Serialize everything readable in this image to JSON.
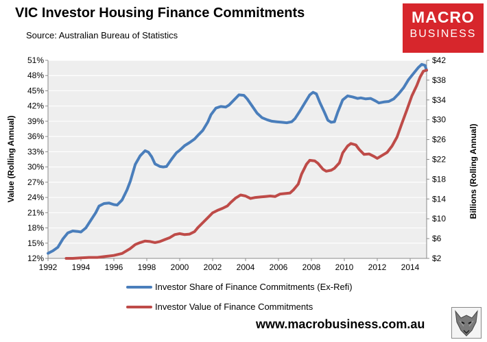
{
  "header": {
    "title": "VIC Investor Housing Finance Commitments",
    "subtitle": "Source: Australian Bureau of Statistics"
  },
  "logo": {
    "line1": "MACRO",
    "line2": "BUSINESS"
  },
  "footer": {
    "url": "www.macrobusiness.com.au",
    "emblem_icon": "wolf-emblem-icon"
  },
  "colors": {
    "share": "#4a7ebb",
    "value": "#be4b48",
    "plot_bg": "#eeeeee"
  },
  "chart_data": {
    "type": "line",
    "title": "VIC Investor Housing Finance Commitments",
    "xlabel": "",
    "ylabel_left": "Value (Rolling Annual)",
    "ylabel_right": "Billions (Rolling Annual)",
    "xlim": [
      1992,
      2015
    ],
    "ylim_left": [
      12,
      51
    ],
    "ylim_right": [
      2,
      42
    ],
    "x_ticks": [
      "1992",
      "1994",
      "1996",
      "1998",
      "2000",
      "2002",
      "2004",
      "2006",
      "2008",
      "2010",
      "2012",
      "2014"
    ],
    "y_ticks_left": [
      "12%",
      "15%",
      "18%",
      "21%",
      "24%",
      "27%",
      "30%",
      "33%",
      "36%",
      "39%",
      "42%",
      "45%",
      "48%",
      "51%"
    ],
    "y_ticks_right": [
      "$2",
      "$6",
      "$10",
      "$14",
      "$18",
      "$22",
      "$26",
      "$30",
      "$34",
      "$38",
      "$42"
    ],
    "grid": "horizontal",
    "legend_position": "bottom",
    "series": [
      {
        "name": "Investor Share of Finance Commitments (Ex-Refi)",
        "axis": "left",
        "unit": "%",
        "points": [
          [
            1992.0,
            13.0
          ],
          [
            1992.3,
            13.5
          ],
          [
            1992.6,
            14.2
          ],
          [
            1992.9,
            15.8
          ],
          [
            1993.2,
            17.0
          ],
          [
            1993.5,
            17.4
          ],
          [
            1993.8,
            17.3
          ],
          [
            1994.0,
            17.2
          ],
          [
            1994.3,
            18.0
          ],
          [
            1994.6,
            19.5
          ],
          [
            1994.9,
            21.0
          ],
          [
            1995.1,
            22.3
          ],
          [
            1995.4,
            22.8
          ],
          [
            1995.7,
            22.9
          ],
          [
            1996.0,
            22.6
          ],
          [
            1996.2,
            22.5
          ],
          [
            1996.5,
            23.5
          ],
          [
            1996.8,
            25.5
          ],
          [
            1997.0,
            27.2
          ],
          [
            1997.3,
            30.5
          ],
          [
            1997.6,
            32.2
          ],
          [
            1997.9,
            33.2
          ],
          [
            1998.1,
            32.9
          ],
          [
            1998.3,
            32.0
          ],
          [
            1998.5,
            30.6
          ],
          [
            1998.8,
            30.1
          ],
          [
            1999.0,
            30.0
          ],
          [
            1999.2,
            30.1
          ],
          [
            1999.5,
            31.5
          ],
          [
            1999.8,
            32.8
          ],
          [
            2000.0,
            33.3
          ],
          [
            2000.3,
            34.2
          ],
          [
            2000.6,
            34.8
          ],
          [
            2000.9,
            35.5
          ],
          [
            2001.1,
            36.2
          ],
          [
            2001.4,
            37.2
          ],
          [
            2001.7,
            38.8
          ],
          [
            2001.9,
            40.3
          ],
          [
            2002.2,
            41.6
          ],
          [
            2002.5,
            41.9
          ],
          [
            2002.8,
            41.8
          ],
          [
            2003.0,
            42.2
          ],
          [
            2003.3,
            43.2
          ],
          [
            2003.6,
            44.2
          ],
          [
            2003.9,
            44.1
          ],
          [
            2004.1,
            43.4
          ],
          [
            2004.4,
            42.0
          ],
          [
            2004.7,
            40.6
          ],
          [
            2005.0,
            39.7
          ],
          [
            2005.3,
            39.3
          ],
          [
            2005.6,
            39.0
          ],
          [
            2005.9,
            38.9
          ],
          [
            2006.2,
            38.8
          ],
          [
            2006.5,
            38.7
          ],
          [
            2006.8,
            38.9
          ],
          [
            2007.0,
            39.5
          ],
          [
            2007.3,
            41.0
          ],
          [
            2007.6,
            42.6
          ],
          [
            2007.9,
            44.2
          ],
          [
            2008.1,
            44.7
          ],
          [
            2008.3,
            44.4
          ],
          [
            2008.5,
            42.8
          ],
          [
            2008.8,
            40.7
          ],
          [
            2009.0,
            39.2
          ],
          [
            2009.2,
            38.8
          ],
          [
            2009.4,
            38.9
          ],
          [
            2009.6,
            40.8
          ],
          [
            2009.9,
            43.2
          ],
          [
            2010.2,
            44.0
          ],
          [
            2010.5,
            43.8
          ],
          [
            2010.8,
            43.5
          ],
          [
            2011.0,
            43.6
          ],
          [
            2011.3,
            43.4
          ],
          [
            2011.6,
            43.5
          ],
          [
            2011.9,
            43.0
          ],
          [
            2012.1,
            42.6
          ],
          [
            2012.4,
            42.8
          ],
          [
            2012.7,
            42.9
          ],
          [
            2013.0,
            43.4
          ],
          [
            2013.3,
            44.4
          ],
          [
            2013.6,
            45.6
          ],
          [
            2013.9,
            47.2
          ],
          [
            2014.2,
            48.4
          ],
          [
            2014.5,
            49.6
          ],
          [
            2014.7,
            50.2
          ],
          [
            2014.9,
            50.0
          ],
          [
            2015.0,
            49.0
          ]
        ]
      },
      {
        "name": "Investor Value of Finance Commitments",
        "axis": "right",
        "unit": "$B",
        "points": [
          [
            1993.1,
            2.0
          ],
          [
            1993.5,
            2.0
          ],
          [
            1994.0,
            2.1
          ],
          [
            1994.5,
            2.2
          ],
          [
            1995.0,
            2.2
          ],
          [
            1995.5,
            2.4
          ],
          [
            1996.0,
            2.6
          ],
          [
            1996.5,
            3.0
          ],
          [
            1997.0,
            4.0
          ],
          [
            1997.3,
            4.8
          ],
          [
            1997.6,
            5.2
          ],
          [
            1997.9,
            5.5
          ],
          [
            1998.2,
            5.4
          ],
          [
            1998.5,
            5.2
          ],
          [
            1998.8,
            5.4
          ],
          [
            1999.1,
            5.8
          ],
          [
            1999.4,
            6.2
          ],
          [
            1999.7,
            6.8
          ],
          [
            2000.0,
            7.0
          ],
          [
            2000.3,
            6.8
          ],
          [
            2000.6,
            6.9
          ],
          [
            2000.9,
            7.4
          ],
          [
            2001.1,
            8.2
          ],
          [
            2001.4,
            9.2
          ],
          [
            2001.7,
            10.2
          ],
          [
            2002.0,
            11.2
          ],
          [
            2002.3,
            11.7
          ],
          [
            2002.6,
            12.1
          ],
          [
            2002.9,
            12.6
          ],
          [
            2003.1,
            13.3
          ],
          [
            2003.4,
            14.2
          ],
          [
            2003.7,
            14.8
          ],
          [
            2004.0,
            14.6
          ],
          [
            2004.3,
            14.1
          ],
          [
            2004.6,
            14.3
          ],
          [
            2004.9,
            14.4
          ],
          [
            2005.2,
            14.5
          ],
          [
            2005.5,
            14.6
          ],
          [
            2005.8,
            14.5
          ],
          [
            2006.1,
            15.0
          ],
          [
            2006.4,
            15.1
          ],
          [
            2006.7,
            15.2
          ],
          [
            2006.9,
            15.8
          ],
          [
            2007.2,
            17.0
          ],
          [
            2007.4,
            19.0
          ],
          [
            2007.7,
            21.0
          ],
          [
            2007.9,
            21.8
          ],
          [
            2008.2,
            21.7
          ],
          [
            2008.4,
            21.2
          ],
          [
            2008.7,
            20.0
          ],
          [
            2008.9,
            19.6
          ],
          [
            2009.2,
            19.8
          ],
          [
            2009.4,
            20.2
          ],
          [
            2009.7,
            21.3
          ],
          [
            2009.9,
            23.3
          ],
          [
            2010.2,
            24.7
          ],
          [
            2010.4,
            25.2
          ],
          [
            2010.7,
            24.9
          ],
          [
            2010.9,
            24.0
          ],
          [
            2011.2,
            23.0
          ],
          [
            2011.5,
            23.1
          ],
          [
            2011.8,
            22.6
          ],
          [
            2012.0,
            22.2
          ],
          [
            2012.3,
            22.8
          ],
          [
            2012.6,
            23.4
          ],
          [
            2012.9,
            24.7
          ],
          [
            2013.2,
            26.5
          ],
          [
            2013.5,
            29.3
          ],
          [
            2013.8,
            32.0
          ],
          [
            2014.1,
            34.8
          ],
          [
            2014.4,
            36.9
          ],
          [
            2014.6,
            38.6
          ],
          [
            2014.8,
            39.8
          ],
          [
            2015.0,
            40.0
          ]
        ]
      }
    ]
  }
}
